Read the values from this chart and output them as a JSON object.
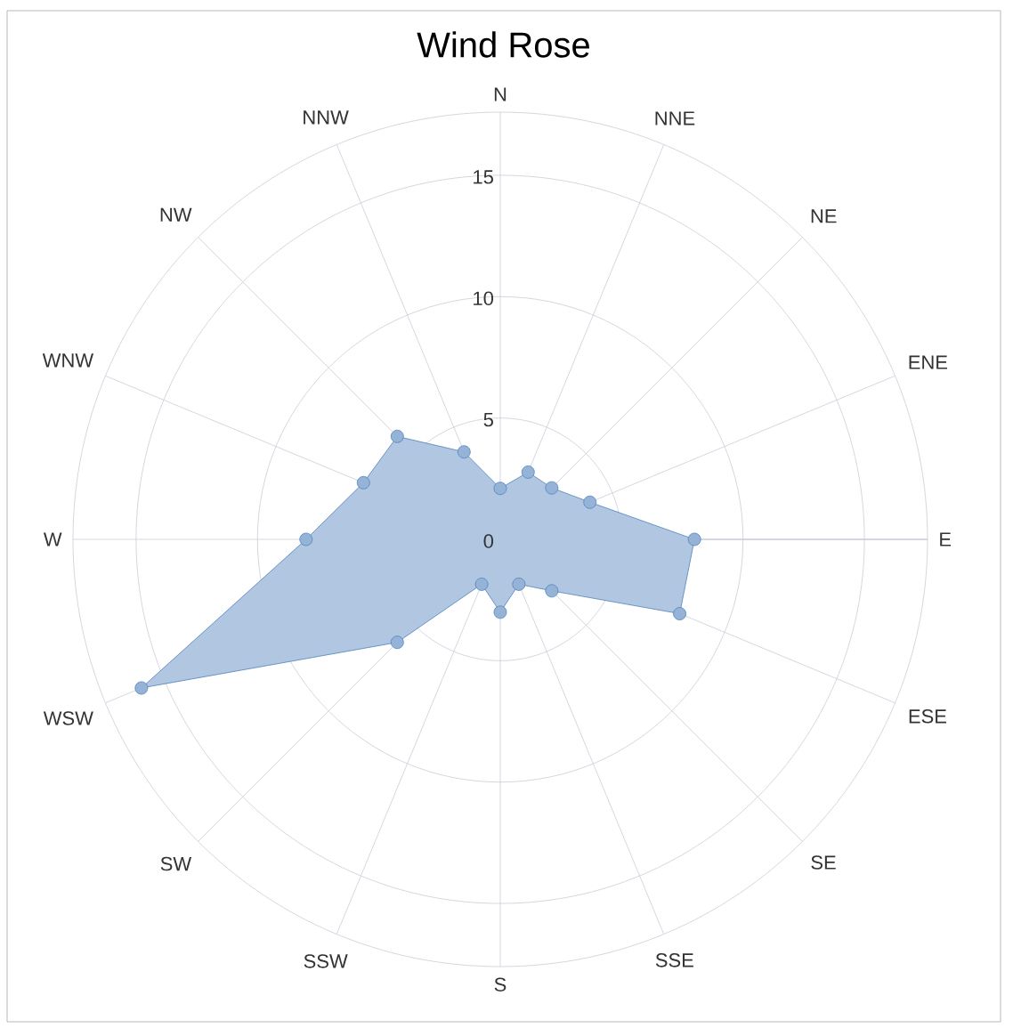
{
  "chart_data": {
    "type": "radar",
    "title": "Wind Rose",
    "categories": [
      "N",
      "NNE",
      "NE",
      "ENE",
      "E",
      "ESE",
      "SE",
      "SSE",
      "S",
      "SSW",
      "SW",
      "WSW",
      "W",
      "WNW",
      "NW",
      "NNW"
    ],
    "series": [
      {
        "color": "#4f81bd",
        "values": [
          2.1,
          3.0,
          3.0,
          4.0,
          8.0,
          8.0,
          3.0,
          2.0,
          3.0,
          2.0,
          6.0,
          16.0,
          8.0,
          6.1,
          6.0,
          3.9
        ]
      }
    ],
    "ylim": [
      0,
      17.6
    ],
    "yticks": [
      0,
      5,
      10,
      15
    ],
    "grid": true,
    "marker": "circle"
  }
}
